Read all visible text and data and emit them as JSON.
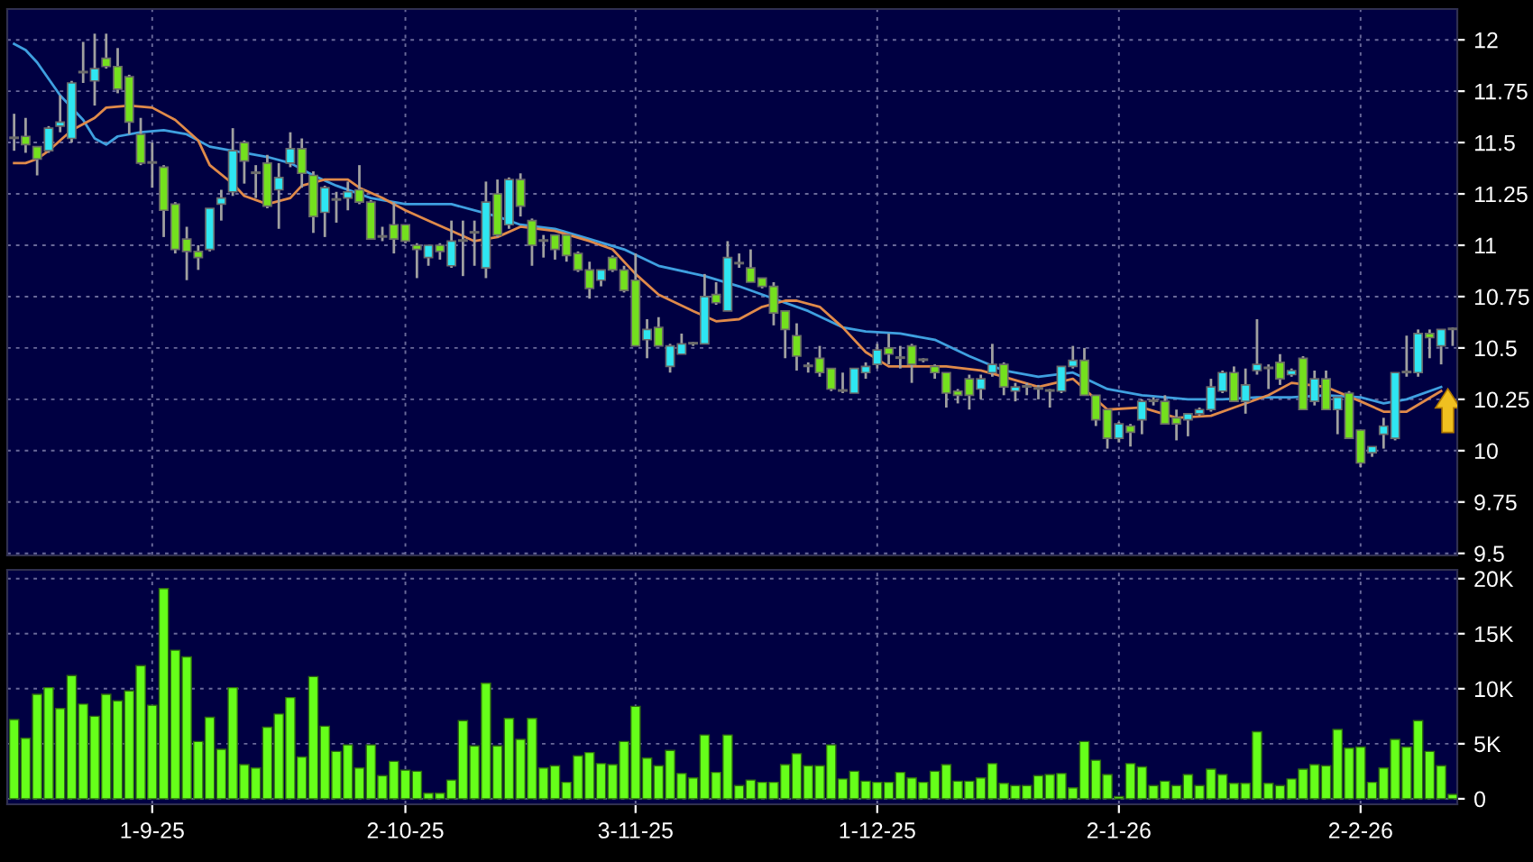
{
  "chart_data": [
    {
      "type": "candlestick",
      "categories": [
        null,
        null,
        null,
        null,
        null,
        null,
        null,
        null,
        null,
        null,
        null,
        null,
        null,
        null,
        null,
        null,
        null,
        null,
        null,
        null,
        null,
        null,
        null,
        null,
        null,
        null,
        null,
        null,
        null,
        null,
        null,
        null,
        null,
        null,
        null,
        null,
        null,
        null,
        null,
        null,
        null,
        null,
        null,
        null,
        null,
        null,
        null,
        null,
        null,
        null,
        null,
        null,
        null,
        null,
        null,
        null,
        null,
        null,
        null,
        null,
        null,
        null,
        null,
        null,
        null,
        null,
        null,
        null,
        null,
        null,
        null,
        null,
        null,
        null,
        null,
        null,
        null,
        null,
        null,
        null,
        null,
        null,
        null,
        null,
        null,
        null,
        null,
        null,
        null,
        null,
        null,
        null,
        null,
        null,
        null,
        null,
        null,
        null,
        null,
        null,
        null,
        null,
        null,
        null,
        null,
        null,
        null,
        null,
        null,
        null,
        null,
        null,
        null,
        null,
        null,
        null,
        null,
        null,
        null,
        null,
        null,
        null,
        null,
        null,
        null,
        null
      ],
      "ohlc": [
        [
          11.52,
          11.64,
          11.46,
          11.52
        ],
        [
          11.53,
          11.62,
          11.45,
          11.49
        ],
        [
          11.48,
          11.48,
          11.34,
          11.42
        ],
        [
          11.46,
          11.58,
          11.45,
          11.57
        ],
        [
          11.58,
          11.73,
          11.55,
          11.6
        ],
        [
          11.52,
          11.8,
          11.5,
          11.79
        ],
        [
          11.84,
          11.99,
          11.79,
          11.84
        ],
        [
          11.8,
          12.03,
          11.68,
          11.86
        ],
        [
          11.91,
          12.03,
          11.86,
          11.87
        ],
        [
          11.87,
          11.96,
          11.74,
          11.76
        ],
        [
          11.82,
          11.83,
          11.54,
          11.6
        ],
        [
          11.54,
          11.62,
          11.39,
          11.4
        ],
        [
          11.4,
          11.5,
          11.28,
          11.4
        ],
        [
          11.38,
          11.39,
          11.04,
          11.17
        ],
        [
          11.2,
          11.21,
          10.96,
          10.98
        ],
        [
          11.03,
          11.09,
          10.83,
          10.97
        ],
        [
          10.97,
          11.0,
          10.88,
          10.94
        ],
        [
          10.98,
          11.18,
          10.97,
          11.18
        ],
        [
          11.2,
          11.27,
          11.12,
          11.23
        ],
        [
          11.26,
          11.57,
          11.24,
          11.46
        ],
        [
          11.5,
          11.51,
          11.3,
          11.41
        ],
        [
          11.35,
          11.39,
          11.23,
          11.35
        ],
        [
          11.4,
          11.44,
          11.18,
          11.19
        ],
        [
          11.27,
          11.4,
          11.08,
          11.33
        ],
        [
          11.4,
          11.55,
          11.38,
          11.47
        ],
        [
          11.47,
          11.52,
          11.28,
          11.35
        ],
        [
          11.34,
          11.36,
          11.06,
          11.14
        ],
        [
          11.16,
          11.29,
          11.04,
          11.28
        ],
        [
          11.22,
          11.26,
          11.11,
          11.22
        ],
        [
          11.23,
          11.31,
          11.17,
          11.26
        ],
        [
          11.27,
          11.39,
          11.2,
          11.21
        ],
        [
          11.21,
          11.22,
          11.03,
          11.03
        ],
        [
          11.04,
          11.09,
          11.02,
          11.04
        ],
        [
          11.1,
          11.21,
          10.96,
          11.03
        ],
        [
          11.1,
          11.1,
          11.01,
          11.02
        ],
        [
          11.0,
          11.01,
          10.84,
          10.98
        ],
        [
          10.94,
          11.0,
          10.9,
          11.0
        ],
        [
          11.0,
          11.01,
          10.93,
          10.97
        ],
        [
          10.9,
          11.12,
          10.89,
          11.02
        ],
        [
          11.02,
          11.12,
          10.85,
          11.02
        ],
        [
          11.06,
          11.12,
          10.9,
          11.06
        ],
        [
          10.89,
          11.31,
          10.84,
          11.21
        ],
        [
          11.25,
          11.32,
          11.04,
          11.05
        ],
        [
          11.1,
          11.33,
          11.08,
          11.32
        ],
        [
          11.32,
          11.35,
          11.14,
          11.19
        ],
        [
          11.12,
          11.13,
          10.9,
          11.0
        ],
        [
          11.02,
          11.05,
          10.94,
          11.02
        ],
        [
          11.05,
          11.05,
          10.93,
          10.98
        ],
        [
          11.05,
          11.05,
          10.92,
          10.95
        ],
        [
          10.96,
          10.97,
          10.87,
          10.88
        ],
        [
          10.88,
          10.92,
          10.74,
          10.79
        ],
        [
          10.83,
          10.88,
          10.8,
          10.88
        ],
        [
          10.94,
          10.95,
          10.87,
          10.88
        ],
        [
          10.88,
          10.9,
          10.77,
          10.78
        ],
        [
          10.83,
          10.96,
          10.51,
          10.51
        ],
        [
          10.54,
          10.64,
          10.45,
          10.59
        ],
        [
          10.6,
          10.65,
          10.51,
          10.51
        ],
        [
          10.41,
          10.52,
          10.38,
          10.51
        ],
        [
          10.47,
          10.57,
          10.47,
          10.52
        ],
        [
          10.52,
          10.53,
          10.51,
          10.52
        ],
        [
          10.52,
          10.86,
          10.52,
          10.75
        ],
        [
          10.76,
          10.82,
          10.71,
          10.72
        ],
        [
          10.68,
          11.02,
          10.68,
          10.94
        ],
        [
          10.91,
          10.96,
          10.89,
          10.91
        ],
        [
          10.89,
          10.98,
          10.82,
          10.82
        ],
        [
          10.84,
          10.84,
          10.79,
          10.8
        ],
        [
          10.8,
          10.82,
          10.61,
          10.67
        ],
        [
          10.68,
          10.68,
          10.45,
          10.59
        ],
        [
          10.56,
          10.62,
          10.39,
          10.46
        ],
        [
          10.41,
          10.43,
          10.38,
          10.41
        ],
        [
          10.45,
          10.51,
          10.36,
          10.38
        ],
        [
          10.4,
          10.4,
          10.29,
          10.3
        ],
        [
          10.29,
          10.38,
          10.28,
          10.29
        ],
        [
          10.28,
          10.4,
          10.28,
          10.4
        ],
        [
          10.38,
          10.43,
          10.35,
          10.41
        ],
        [
          10.42,
          10.52,
          10.4,
          10.49
        ],
        [
          10.5,
          10.57,
          10.42,
          10.47
        ],
        [
          10.45,
          10.51,
          10.4,
          10.45
        ],
        [
          10.51,
          10.52,
          10.33,
          10.42
        ],
        [
          10.44,
          10.45,
          10.43,
          10.44
        ],
        [
          10.41,
          10.42,
          10.35,
          10.38
        ],
        [
          10.38,
          10.38,
          10.21,
          10.28
        ],
        [
          10.29,
          10.3,
          10.23,
          10.27
        ],
        [
          10.35,
          10.37,
          10.2,
          10.27
        ],
        [
          10.3,
          10.37,
          10.25,
          10.35
        ],
        [
          10.38,
          10.52,
          10.36,
          10.42
        ],
        [
          10.42,
          10.43,
          10.27,
          10.31
        ],
        [
          10.29,
          10.33,
          10.24,
          10.31
        ],
        [
          10.31,
          10.33,
          10.27,
          10.31
        ],
        [
          10.3,
          10.32,
          10.25,
          10.3
        ],
        [
          10.29,
          10.3,
          10.21,
          10.29
        ],
        [
          10.29,
          10.41,
          10.28,
          10.41
        ],
        [
          10.41,
          10.51,
          10.4,
          10.44
        ],
        [
          10.44,
          10.5,
          10.27,
          10.27
        ],
        [
          10.27,
          10.27,
          10.12,
          10.15
        ],
        [
          10.2,
          10.2,
          10.01,
          10.06
        ],
        [
          10.06,
          10.14,
          10.04,
          10.13
        ],
        [
          10.12,
          10.13,
          10.02,
          10.09
        ],
        [
          10.15,
          10.25,
          10.08,
          10.24
        ],
        [
          10.24,
          10.26,
          10.22,
          10.24
        ],
        [
          10.24,
          10.27,
          10.13,
          10.13
        ],
        [
          10.16,
          10.2,
          10.05,
          10.13
        ],
        [
          10.15,
          10.18,
          10.07,
          10.18
        ],
        [
          10.18,
          10.21,
          10.17,
          10.2
        ],
        [
          10.2,
          10.35,
          10.19,
          10.31
        ],
        [
          10.29,
          10.39,
          10.28,
          10.38
        ],
        [
          10.38,
          10.41,
          10.24,
          10.24
        ],
        [
          10.24,
          10.4,
          10.18,
          10.32
        ],
        [
          10.39,
          10.64,
          10.37,
          10.42
        ],
        [
          10.4,
          10.42,
          10.3,
          10.4
        ],
        [
          10.43,
          10.47,
          10.32,
          10.35
        ],
        [
          10.37,
          10.4,
          10.36,
          10.39
        ],
        [
          10.45,
          10.46,
          10.2,
          10.2
        ],
        [
          10.24,
          10.39,
          10.22,
          10.35
        ],
        [
          10.35,
          10.39,
          10.2,
          10.2
        ],
        [
          10.2,
          10.26,
          10.08,
          10.26
        ],
        [
          10.28,
          10.29,
          10.06,
          10.06
        ],
        [
          10.1,
          10.1,
          9.92,
          9.94
        ],
        [
          9.99,
          10.02,
          9.97,
          10.02
        ],
        [
          10.08,
          10.16,
          10.01,
          10.12
        ],
        [
          10.06,
          10.38,
          10.05,
          10.38
        ],
        [
          10.38,
          10.56,
          10.36,
          10.38
        ],
        [
          10.38,
          10.59,
          10.36,
          10.57
        ],
        [
          10.57,
          10.59,
          10.45,
          10.55
        ],
        [
          10.51,
          10.59,
          10.42,
          10.59
        ],
        [
          10.59,
          10.6,
          10.51,
          10.59
        ]
      ],
      "colors": [
        "#9a9a9a",
        "#74e01e",
        "#74e01e",
        "#2ee6f2",
        "#2ee6f2",
        "#2ee6f2",
        "#9a9a9a",
        "#2ee6f2",
        "#74e01e",
        "#74e01e",
        "#74e01e",
        "#74e01e",
        "#9a9a9a",
        "#74e01e",
        "#74e01e",
        "#74e01e",
        "#74e01e",
        "#2ee6f2",
        "#2ee6f2",
        "#2ee6f2",
        "#74e01e",
        "#9a9a9a",
        "#74e01e",
        "#2ee6f2",
        "#2ee6f2",
        "#74e01e",
        "#74e01e",
        "#2ee6f2",
        "#9a9a9a",
        "#2ee6f2",
        "#74e01e",
        "#74e01e",
        "#9a9a9a",
        "#74e01e",
        "#74e01e",
        "#74e01e",
        "#2ee6f2",
        "#74e01e",
        "#2ee6f2",
        "#9a9a9a",
        "#9a9a9a",
        "#2ee6f2",
        "#74e01e",
        "#2ee6f2",
        "#74e01e",
        "#74e01e",
        "#9a9a9a",
        "#74e01e",
        "#74e01e",
        "#74e01e",
        "#74e01e",
        "#2ee6f2",
        "#74e01e",
        "#74e01e",
        "#74e01e",
        "#2ee6f2",
        "#74e01e",
        "#2ee6f2",
        "#2ee6f2",
        "#9a9a9a",
        "#2ee6f2",
        "#74e01e",
        "#2ee6f2",
        "#9a9a9a",
        "#74e01e",
        "#74e01e",
        "#74e01e",
        "#74e01e",
        "#74e01e",
        "#9a9a9a",
        "#74e01e",
        "#74e01e",
        "#9a9a9a",
        "#2ee6f2",
        "#2ee6f2",
        "#2ee6f2",
        "#74e01e",
        "#9a9a9a",
        "#74e01e",
        "#9a9a9a",
        "#74e01e",
        "#74e01e",
        "#74e01e",
        "#74e01e",
        "#2ee6f2",
        "#2ee6f2",
        "#74e01e",
        "#2ee6f2",
        "#9a9a9a",
        "#9a9a9a",
        "#9a9a9a",
        "#2ee6f2",
        "#2ee6f2",
        "#74e01e",
        "#74e01e",
        "#74e01e",
        "#2ee6f2",
        "#74e01e",
        "#2ee6f2",
        "#9a9a9a",
        "#74e01e",
        "#74e01e",
        "#2ee6f2",
        "#2ee6f2",
        "#2ee6f2",
        "#2ee6f2",
        "#74e01e",
        "#2ee6f2",
        "#2ee6f2",
        "#9a9a9a",
        "#74e01e",
        "#2ee6f2",
        "#74e01e",
        "#2ee6f2",
        "#74e01e",
        "#2ee6f2",
        "#74e01e",
        "#74e01e",
        "#2ee6f2",
        "#2ee6f2",
        "#2ee6f2",
        "#9a9a9a",
        "#2ee6f2",
        "#74e01e",
        "#2ee6f2",
        "#9a9a9a"
      ],
      "series": [
        {
          "type": "line",
          "color": "#3fa0e0",
          "values": [
            11.98,
            11.95,
            11.89,
            11.81,
            11.73,
            null,
            11.61,
            11.52,
            11.49,
            11.53,
            null,
            11.55,
            null,
            11.56,
            null,
            11.54,
            null,
            11.48,
            null,
            11.46,
            null,
            null,
            11.43,
            null,
            11.4,
            null,
            11.34,
            null,
            11.29,
            null,
            null,
            11.23,
            null,
            null,
            11.2,
            null,
            null,
            null,
            11.2,
            null,
            null,
            null,
            11.14,
            null,
            11.1,
            null,
            null,
            11.08,
            null,
            null,
            11.03,
            null,
            null,
            10.98,
            null,
            null,
            10.9,
            null,
            null,
            null,
            10.85,
            null,
            null,
            10.8,
            null,
            null,
            10.74,
            null,
            null,
            10.68,
            null,
            null,
            10.6,
            null,
            10.58,
            null,
            null,
            10.57,
            null,
            null,
            10.54,
            null,
            null,
            10.46,
            null,
            null,
            10.39,
            null,
            null,
            10.36,
            null,
            null,
            10.38,
            null,
            null,
            10.3,
            null,
            null,
            10.27,
            null,
            null,
            null,
            10.25,
            null,
            null,
            10.25,
            null,
            null,
            10.26,
            null,
            null,
            10.26,
            null,
            null,
            10.27,
            null,
            null,
            10.26,
            null,
            10.23,
            null,
            10.25,
            null,
            null,
            10.31,
            null
          ]
        },
        {
          "type": "line",
          "color": "#e08a4a",
          "values": [
            11.4,
            11.4,
            11.42,
            11.46,
            11.51,
            11.56,
            null,
            11.62,
            11.67,
            null,
            11.68,
            null,
            11.67,
            null,
            11.61,
            null,
            11.51,
            11.39,
            null,
            11.3,
            11.24,
            null,
            11.2,
            null,
            11.23,
            11.29,
            null,
            11.32,
            null,
            11.32,
            11.28,
            null,
            11.23,
            null,
            11.17,
            null,
            11.12,
            null,
            11.07,
            null,
            11.02,
            null,
            11.04,
            null,
            11.09,
            null,
            null,
            11.07,
            null,
            null,
            11.02,
            null,
            10.98,
            null,
            10.86,
            null,
            10.76,
            null,
            null,
            10.68,
            null,
            10.63,
            null,
            10.64,
            null,
            10.7,
            null,
            10.73,
            10.73,
            null,
            10.7,
            null,
            10.6,
            null,
            10.48,
            null,
            10.41,
            null,
            10.41,
            null,
            null,
            10.41,
            null,
            null,
            10.39,
            null,
            10.36,
            null,
            null,
            10.31,
            null,
            null,
            10.35,
            null,
            null,
            10.2,
            null,
            null,
            10.21,
            null,
            null,
            10.16,
            null,
            null,
            10.17,
            null,
            10.21,
            null,
            null,
            10.27,
            null,
            10.33,
            null,
            null,
            10.31,
            null,
            null,
            10.24,
            null,
            10.19,
            null,
            10.19,
            null,
            null,
            10.29,
            null
          ]
        }
      ],
      "ylim": [
        9.49,
        12.15
      ],
      "yticks": [
        9.5,
        9.75,
        10,
        10.25,
        10.5,
        10.75,
        11,
        11.25,
        11.5,
        11.75,
        12
      ],
      "grid": true
    },
    {
      "type": "bar",
      "color": "#66ff1a",
      "categories": [
        null,
        null,
        null,
        null,
        null,
        null,
        null,
        null,
        null,
        null,
        null,
        null,
        "1-9-25",
        null,
        null,
        null,
        null,
        null,
        null,
        null,
        null,
        null,
        null,
        null,
        null,
        null,
        null,
        null,
        null,
        null,
        null,
        null,
        null,
        null,
        "2-10-25",
        null,
        null,
        null,
        null,
        null,
        null,
        null,
        null,
        null,
        null,
        null,
        null,
        null,
        null,
        null,
        null,
        null,
        null,
        null,
        "3-11-25",
        null,
        null,
        null,
        null,
        null,
        null,
        null,
        null,
        null,
        null,
        null,
        null,
        null,
        null,
        null,
        null,
        null,
        null,
        null,
        null,
        "1-12-25",
        null,
        null,
        null,
        null,
        null,
        null,
        null,
        null,
        null,
        null,
        null,
        null,
        null,
        null,
        null,
        null,
        null,
        null,
        null,
        null,
        "2-1-26",
        null,
        null,
        null,
        null,
        null,
        null,
        null,
        null,
        null,
        null,
        null,
        null,
        null,
        null,
        null,
        null,
        null,
        null,
        null,
        null,
        "2-2-26",
        null,
        null,
        null,
        null,
        null,
        null,
        null,
        null
      ],
      "values": [
        7200,
        5500,
        9500,
        10100,
        8200,
        11200,
        8600,
        7500,
        9500,
        8900,
        9800,
        12100,
        8500,
        19100,
        13500,
        12900,
        5200,
        7400,
        4500,
        10100,
        3100,
        2800,
        6500,
        7700,
        9200,
        3800,
        11100,
        6600,
        4300,
        4900,
        2800,
        4900,
        2100,
        3400,
        2600,
        2500,
        500,
        500,
        1700,
        7100,
        4800,
        10500,
        4800,
        7300,
        5400,
        7300,
        2800,
        3000,
        1500,
        3900,
        4200,
        3200,
        3100,
        5200,
        8400,
        3700,
        3000,
        4400,
        2300,
        1900,
        5800,
        2400,
        5800,
        1200,
        1700,
        1500,
        1500,
        3100,
        4100,
        3000,
        3000,
        4900,
        1800,
        2500,
        1600,
        1500,
        1500,
        2400,
        1900,
        1500,
        2500,
        3100,
        1600,
        1600,
        1900,
        3200,
        1400,
        1200,
        1200,
        2100,
        2200,
        2300,
        1000,
        5200,
        3500,
        2200,
        200,
        3200,
        2900,
        1200,
        1600,
        1200,
        2200,
        1200,
        2700,
        2200,
        1400,
        1400,
        6100,
        1400,
        1200,
        1800,
        2700,
        3100,
        3000,
        6300,
        4600,
        4700,
        1500,
        2800,
        5400,
        4700,
        7100,
        4300,
        3000,
        400
      ],
      "ylim": [
        -500,
        20800
      ],
      "yticks": [
        0,
        {
          "value": 5000,
          "label": "5K"
        },
        {
          "value": 10000,
          "label": "10K"
        },
        {
          "value": 15000,
          "label": "15K"
        },
        {
          "value": 20000,
          "label": "20K"
        }
      ],
      "grid": true
    }
  ]
}
